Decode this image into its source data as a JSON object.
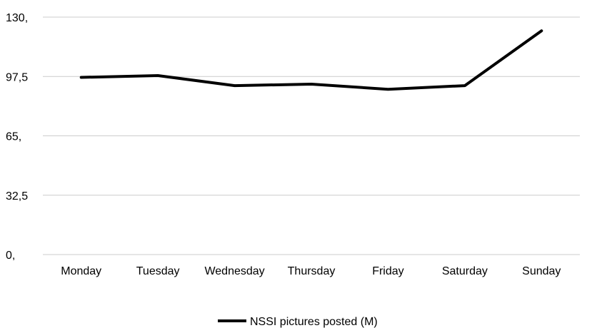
{
  "chart_data": {
    "type": "line",
    "title": "",
    "xlabel": "",
    "ylabel": "",
    "categories": [
      "Monday",
      "Tuesday",
      "Wednesday",
      "Thursday",
      "Friday",
      "Saturday",
      "Sunday"
    ],
    "y_ticks": [
      "0,",
      "32,5",
      "65,",
      "97,5",
      "130,"
    ],
    "ylim": [
      0,
      130
    ],
    "grid": true,
    "legend_position": "bottom-center",
    "series": [
      {
        "name": "NSSI pictures posted (M)",
        "color": "#000000",
        "values": [
          97,
          98,
          92.5,
          93.3,
          90.5,
          92.5,
          122.5
        ]
      }
    ]
  }
}
